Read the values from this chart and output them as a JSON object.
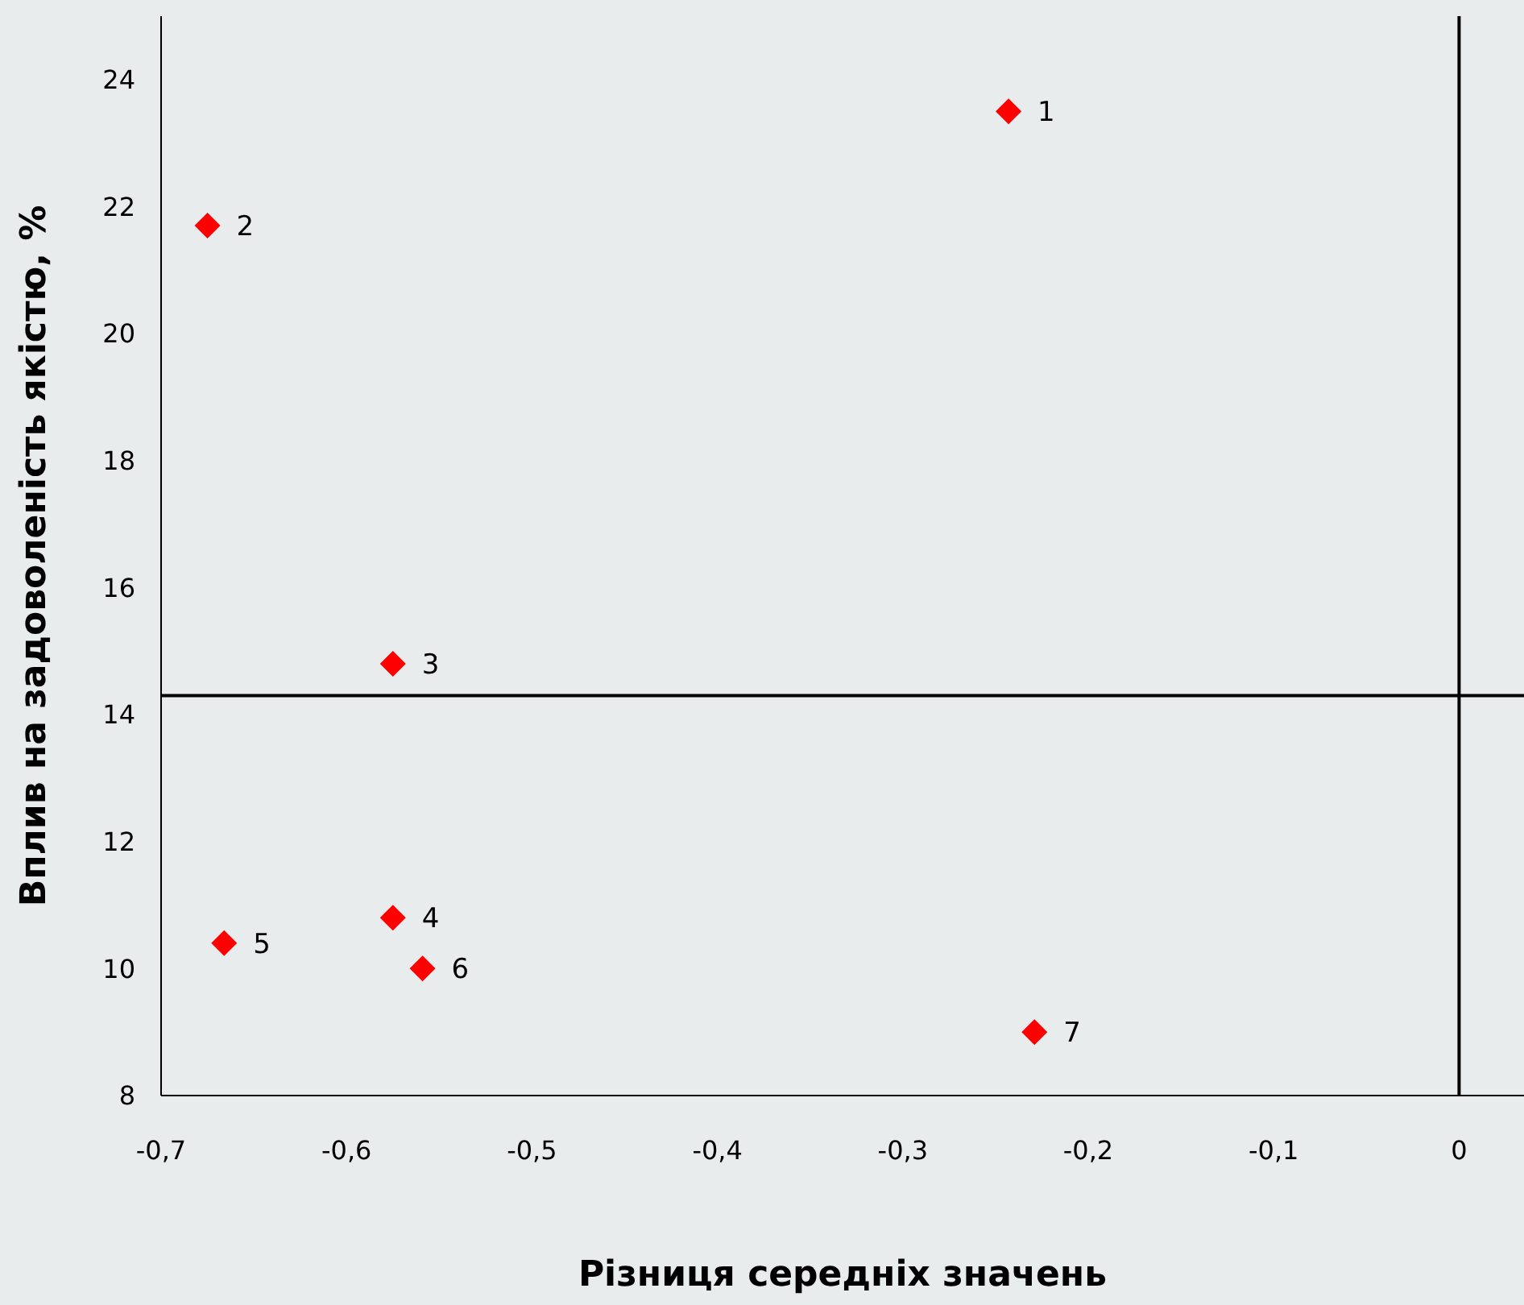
{
  "chart_data": {
    "type": "scatter",
    "xlabel": "Різниця середніх значень",
    "ylabel": "Вплив на задоволеність якістю, %",
    "x": [
      -0.243,
      -0.675,
      -0.575,
      -0.575,
      -0.666,
      -0.559,
      -0.229
    ],
    "series": [
      {
        "color": "#ff0000",
        "values": [
          23.5,
          21.7,
          14.8,
          10.8,
          10.4,
          10.0,
          9.0
        ]
      }
    ],
    "annotations": [
      {
        "text": "1",
        "x": -0.243,
        "y": 23.5
      },
      {
        "text": "2",
        "x": -0.675,
        "y": 21.7
      },
      {
        "text": "3",
        "x": -0.575,
        "y": 14.8
      },
      {
        "text": "4",
        "x": -0.575,
        "y": 10.8
      },
      {
        "text": "5",
        "x": -0.666,
        "y": 10.4
      },
      {
        "text": "6",
        "x": -0.559,
        "y": 10.0
      },
      {
        "text": "7",
        "x": -0.229,
        "y": 9.0
      }
    ],
    "xlim": [
      -0.7,
      0.035
    ],
    "xticks": [
      {
        "value": -0.7,
        "label": "-0,7"
      },
      {
        "value": -0.6,
        "label": "-0,6"
      },
      {
        "value": -0.5,
        "label": "-0,5"
      },
      {
        "value": -0.4,
        "label": "-0,4"
      },
      {
        "value": -0.3,
        "label": "-0,3"
      },
      {
        "value": -0.2,
        "label": "-0,2"
      },
      {
        "value": -0.1,
        "label": "-0,1"
      },
      0
    ],
    "ylim": [
      8,
      25
    ],
    "yticks": [
      8,
      10,
      12,
      14,
      16,
      18,
      20,
      22,
      24
    ],
    "ref_lines": [
      {
        "axis": "x",
        "value": 0,
        "color": "#000000"
      },
      {
        "axis": "y",
        "value": 14.3,
        "color": "#000000"
      }
    ],
    "marker": "diamond",
    "grid": false,
    "legend": false
  }
}
